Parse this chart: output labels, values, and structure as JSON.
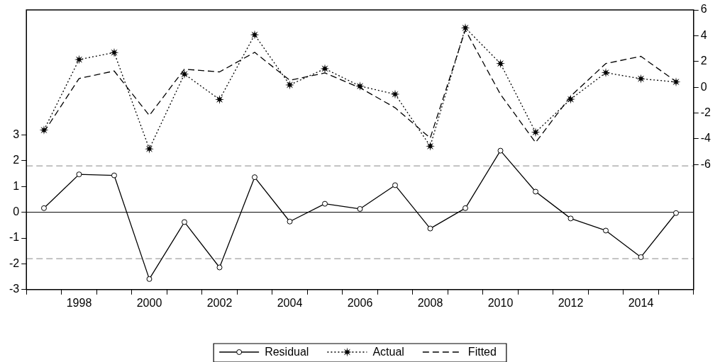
{
  "chart_data": {
    "type": "line",
    "categories": [
      null,
      "1998",
      null,
      "2000",
      null,
      "2002",
      null,
      "2004",
      null,
      "2006",
      null,
      "2008",
      null,
      "2010",
      null,
      "2012",
      null,
      "2014",
      null
    ],
    "series": [
      {
        "name": "Residual",
        "color": "#000000",
        "axis": "y",
        "marker": "circle",
        "line_style": "solid",
        "values": [
          0.16,
          1.47,
          1.43,
          -2.59,
          -0.38,
          -2.14,
          1.36,
          -0.36,
          0.33,
          0.13,
          1.05,
          -0.63,
          0.16,
          2.39,
          0.8,
          -0.24,
          -0.71,
          -1.74,
          -0.03
        ]
      },
      {
        "name": "Actual",
        "color": "#000000",
        "axis": "y2",
        "marker": "star",
        "line_style": "dotted",
        "values": [
          -3.32,
          2.15,
          2.69,
          -4.78,
          1.02,
          -0.95,
          4.07,
          0.18,
          1.44,
          0.09,
          -0.54,
          -4.57,
          4.61,
          1.84,
          -3.49,
          -0.93,
          1.13,
          0.66,
          0.41
        ]
      },
      {
        "name": "Fitted",
        "color": "#000000",
        "axis": "y2",
        "marker": "none",
        "line_style": "dashed",
        "values": [
          -3.48,
          0.68,
          1.26,
          -2.19,
          1.4,
          1.19,
          2.71,
          0.54,
          1.11,
          -0.04,
          -1.59,
          -3.94,
          4.45,
          -0.55,
          -4.29,
          -0.69,
          1.84,
          2.4,
          0.44
        ]
      }
    ],
    "ylim": [
      -3,
      7.85
    ],
    "yticks": [
      -3,
      -2,
      -1,
      0,
      1,
      2,
      3
    ],
    "y2lim": [
      -15.7,
      6
    ],
    "y2ticks": [
      -6,
      -4,
      -2,
      0,
      2,
      4,
      6
    ],
    "ref_lines": [
      {
        "axis": "y",
        "value": 0,
        "color": "#000000",
        "line_style": "solid"
      },
      {
        "axis": "y",
        "value": 1.8,
        "color": "#888888",
        "line_style": "dashed"
      },
      {
        "axis": "y",
        "value": -1.8,
        "color": "#888888",
        "line_style": "dashed"
      }
    ],
    "grid": false,
    "legend": "bottom"
  }
}
